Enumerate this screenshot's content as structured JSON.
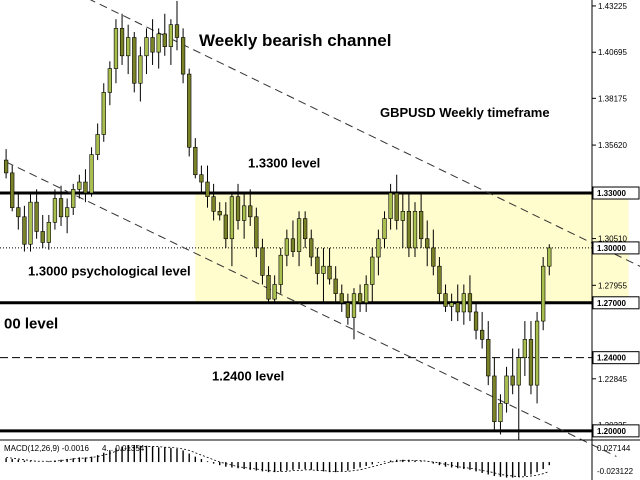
{
  "chart_data": [
    {
      "type": "candlestick",
      "title": "Weekly bearish channel",
      "subtitle": "GBPUSD Weekly timeframe",
      "colors": {
        "bull": "#a8bf50",
        "bear": "#7a8228",
        "highlight": "#fffccd",
        "macd_line": "#000000"
      },
      "y_axis": {
        "ylim": [
          1.195,
          1.4355
        ],
        "ticks": [
          "1.43225",
          "1.40695",
          "1.38175",
          "1.35620",
          "1.30510",
          "1.27955",
          "1.22845",
          "1.20325"
        ]
      },
      "price_tags": [
        "1.33000",
        "1.30000",
        "1.27000",
        "1.24000",
        "1.20000"
      ],
      "levels": [
        {
          "value": 1.33,
          "style": "solid",
          "label": "1.3300 level"
        },
        {
          "value": 1.3,
          "style": "dotted",
          "label": "1.3000 psychological level"
        },
        {
          "value": 1.27,
          "style": "solid",
          "label": "00 level"
        },
        {
          "value": 1.24,
          "style": "dashed",
          "label": "1.2400 level"
        },
        {
          "value": 1.2,
          "style": "solid",
          "label": ""
        }
      ],
      "highlight_zone": {
        "y_range": [
          1.27,
          1.33
        ],
        "x_range": [
          31,
          102
        ]
      },
      "channel": [
        {
          "x0": 0,
          "y0": 1.458,
          "x1": 110,
          "y1": 1.28
        },
        {
          "x0": 0,
          "y0": 1.347,
          "x1": 100,
          "y1": 1.186
        }
      ],
      "candles": [
        [
          1.348,
          1.354,
          1.338,
          1.341
        ],
        [
          1.341,
          1.345,
          1.32,
          1.322
        ],
        [
          1.322,
          1.33,
          1.31,
          1.317
        ],
        [
          1.317,
          1.323,
          1.298,
          1.302
        ],
        [
          1.302,
          1.33,
          1.298,
          1.325
        ],
        [
          1.325,
          1.332,
          1.305,
          1.309
        ],
        [
          1.309,
          1.318,
          1.3,
          1.303
        ],
        [
          1.303,
          1.318,
          1.299,
          1.314
        ],
        [
          1.314,
          1.332,
          1.31,
          1.327
        ],
        [
          1.327,
          1.334,
          1.312,
          1.317
        ],
        [
          1.317,
          1.327,
          1.308,
          1.322
        ],
        [
          1.322,
          1.335,
          1.318,
          1.332
        ],
        [
          1.332,
          1.34,
          1.327,
          1.336
        ],
        [
          1.336,
          1.343,
          1.325,
          1.33
        ],
        [
          1.33,
          1.355,
          1.328,
          1.351
        ],
        [
          1.351,
          1.368,
          1.348,
          1.362
        ],
        [
          1.362,
          1.39,
          1.358,
          1.385
        ],
        [
          1.385,
          1.402,
          1.378,
          1.398
        ],
        [
          1.398,
          1.425,
          1.39,
          1.42
        ],
        [
          1.42,
          1.428,
          1.4,
          1.405
        ],
        [
          1.405,
          1.422,
          1.395,
          1.415
        ],
        [
          1.415,
          1.418,
          1.385,
          1.39
        ],
        [
          1.39,
          1.41,
          1.38,
          1.405
        ],
        [
          1.405,
          1.42,
          1.395,
          1.415
        ],
        [
          1.415,
          1.425,
          1.4,
          1.407
        ],
        [
          1.407,
          1.42,
          1.398,
          1.417
        ],
        [
          1.417,
          1.428,
          1.405,
          1.41
        ],
        [
          1.41,
          1.425,
          1.4,
          1.422
        ],
        [
          1.422,
          1.435,
          1.408,
          1.415
        ],
        [
          1.415,
          1.42,
          1.39,
          1.395
        ],
        [
          1.395,
          1.398,
          1.35,
          1.355
        ],
        [
          1.355,
          1.36,
          1.338,
          1.34
        ],
        [
          1.34,
          1.345,
          1.33,
          1.336
        ],
        [
          1.336,
          1.345,
          1.322,
          1.328
        ],
        [
          1.328,
          1.335,
          1.315,
          1.32
        ],
        [
          1.32,
          1.325,
          1.315,
          1.318
        ],
        [
          1.318,
          1.325,
          1.3,
          1.305
        ],
        [
          1.305,
          1.33,
          1.29,
          1.328
        ],
        [
          1.328,
          1.335,
          1.31,
          1.315
        ],
        [
          1.315,
          1.33,
          1.305,
          1.323
        ],
        [
          1.323,
          1.332,
          1.312,
          1.317
        ],
        [
          1.317,
          1.322,
          1.295,
          1.3
        ],
        [
          1.3,
          1.305,
          1.28,
          1.285
        ],
        [
          1.285,
          1.29,
          1.27,
          1.272
        ],
        [
          1.272,
          1.285,
          1.27,
          1.28
        ],
        [
          1.28,
          1.3,
          1.275,
          1.296
        ],
        [
          1.296,
          1.31,
          1.29,
          1.305
        ],
        [
          1.305,
          1.315,
          1.295,
          1.298
        ],
        [
          1.298,
          1.32,
          1.29,
          1.316
        ],
        [
          1.316,
          1.32,
          1.3,
          1.305
        ],
        [
          1.305,
          1.31,
          1.29,
          1.295
        ],
        [
          1.295,
          1.3,
          1.28,
          1.286
        ],
        [
          1.286,
          1.3,
          1.27,
          1.29
        ],
        [
          1.29,
          1.3,
          1.28,
          1.283
        ],
        [
          1.283,
          1.29,
          1.27,
          1.275
        ],
        [
          1.275,
          1.28,
          1.265,
          1.27
        ],
        [
          1.27,
          1.275,
          1.258,
          1.262
        ],
        [
          1.262,
          1.278,
          1.25,
          1.275
        ],
        [
          1.275,
          1.28,
          1.265,
          1.27
        ],
        [
          1.27,
          1.285,
          1.265,
          1.28
        ],
        [
          1.28,
          1.3,
          1.27,
          1.295
        ],
        [
          1.295,
          1.31,
          1.285,
          1.305
        ],
        [
          1.305,
          1.32,
          1.3,
          1.316
        ],
        [
          1.316,
          1.335,
          1.31,
          1.33
        ],
        [
          1.33,
          1.34,
          1.31,
          1.315
        ],
        [
          1.315,
          1.33,
          1.3,
          1.32
        ],
        [
          1.32,
          1.33,
          1.295,
          1.3
        ],
        [
          1.3,
          1.325,
          1.295,
          1.32
        ],
        [
          1.32,
          1.33,
          1.3,
          1.305
        ],
        [
          1.305,
          1.315,
          1.29,
          1.3
        ],
        [
          1.3,
          1.31,
          1.285,
          1.29
        ],
        [
          1.29,
          1.295,
          1.27,
          1.275
        ],
        [
          1.275,
          1.28,
          1.265,
          1.268
        ],
        [
          1.268,
          1.275,
          1.26,
          1.27
        ],
        [
          1.27,
          1.28,
          1.26,
          1.265
        ],
        [
          1.265,
          1.28,
          1.258,
          1.275
        ],
        [
          1.275,
          1.285,
          1.26,
          1.265
        ],
        [
          1.265,
          1.27,
          1.25,
          1.255
        ],
        [
          1.255,
          1.265,
          1.245,
          1.25
        ],
        [
          1.25,
          1.26,
          1.225,
          1.23
        ],
        [
          1.23,
          1.24,
          1.2,
          1.205
        ],
        [
          1.205,
          1.22,
          1.198,
          1.215
        ],
        [
          1.215,
          1.235,
          1.21,
          1.23
        ],
        [
          1.23,
          1.245,
          1.22,
          1.225
        ],
        [
          1.225,
          1.245,
          1.195,
          1.24
        ],
        [
          1.24,
          1.26,
          1.23,
          1.25
        ],
        [
          1.25,
          1.26,
          1.22,
          1.225
        ],
        [
          1.225,
          1.265,
          1.215,
          1.26
        ],
        [
          1.26,
          1.295,
          1.255,
          1.29
        ],
        [
          1.29,
          1.302,
          1.285,
          1.3
        ]
      ],
      "candle_x": [
        0,
        1,
        2,
        3,
        4,
        5,
        6,
        7,
        8,
        9,
        10,
        11,
        12,
        13,
        14,
        15,
        16,
        17,
        18,
        19,
        20,
        21,
        22,
        23,
        24,
        25,
        26,
        27,
        28,
        29,
        30,
        31,
        32,
        33,
        34,
        35,
        36,
        37,
        38,
        39,
        40,
        41,
        42,
        43,
        44,
        45,
        46,
        47,
        48,
        49,
        50,
        51,
        52,
        53,
        54,
        55,
        56,
        57,
        58,
        59,
        60,
        61,
        62,
        63,
        64,
        65,
        66,
        67,
        68,
        69,
        70,
        71,
        72,
        73,
        74,
        75,
        76,
        77,
        78,
        79,
        80,
        81,
        82,
        83,
        84,
        85,
        86,
        87,
        88,
        89
      ],
      "x_domain": [
        -1,
        96
      ]
    },
    {
      "type": "bar",
      "title": "MACD(12,26,9) -0.0016",
      "subtitle": "4... 0.01354",
      "y_axis": {
        "ticks": [
          "0.027144",
          "-0.023122"
        ],
        "ylim": [
          -0.023122,
          0.027144
        ]
      },
      "macd_x_domain": [
        -1,
        96
      ],
      "macd_start": 0,
      "values": [
        0.005,
        0.004,
        0.003,
        0.002,
        0.001,
        0.0,
        0.0,
        0.001,
        0.002,
        0.003,
        0.004,
        0.005,
        0.006,
        0.006,
        0.007,
        0.009,
        0.012,
        0.015,
        0.018,
        0.02,
        0.022,
        0.022,
        0.021,
        0.021,
        0.02,
        0.019,
        0.019,
        0.018,
        0.017,
        0.015,
        0.011,
        0.007,
        0.004,
        0.001,
        -0.002,
        -0.004,
        -0.006,
        -0.007,
        -0.008,
        -0.009,
        -0.01,
        -0.011,
        -0.012,
        -0.013,
        -0.013,
        -0.012,
        -0.011,
        -0.01,
        -0.009,
        -0.009,
        -0.01,
        -0.011,
        -0.012,
        -0.013,
        -0.013,
        -0.012,
        -0.011,
        -0.009,
        -0.007,
        -0.005,
        -0.003,
        -0.001,
        0.001,
        0.002,
        0.003,
        0.003,
        0.003,
        0.002,
        0.001,
        0.0,
        -0.002,
        -0.004,
        -0.006,
        -0.007,
        -0.008,
        -0.009,
        -0.01,
        -0.012,
        -0.014,
        -0.016,
        -0.018,
        -0.019,
        -0.02,
        -0.02,
        -0.019,
        -0.018,
        -0.016,
        -0.013,
        -0.009,
        -0.004
      ],
      "signal": [
        0.006,
        0.005,
        0.004,
        0.003,
        0.002,
        0.001,
        0.001,
        0.001,
        0.001,
        0.002,
        0.003,
        0.004,
        0.005,
        0.005,
        0.006,
        0.007,
        0.009,
        0.011,
        0.014,
        0.016,
        0.018,
        0.019,
        0.02,
        0.02,
        0.02,
        0.02,
        0.019,
        0.019,
        0.018,
        0.017,
        0.015,
        0.012,
        0.009,
        0.006,
        0.003,
        0.0,
        -0.002,
        -0.004,
        -0.006,
        -0.007,
        -0.008,
        -0.009,
        -0.01,
        -0.011,
        -0.012,
        -0.012,
        -0.012,
        -0.011,
        -0.011,
        -0.01,
        -0.01,
        -0.011,
        -0.011,
        -0.012,
        -0.012,
        -0.012,
        -0.012,
        -0.011,
        -0.01,
        -0.008,
        -0.006,
        -0.004,
        -0.002,
        0.0,
        0.001,
        0.002,
        0.002,
        0.002,
        0.002,
        0.001,
        0.0,
        -0.001,
        -0.003,
        -0.004,
        -0.006,
        -0.007,
        -0.008,
        -0.009,
        -0.011,
        -0.012,
        -0.014,
        -0.016,
        -0.017,
        -0.018,
        -0.019,
        -0.019,
        -0.018,
        -0.017,
        -0.015,
        -0.012
      ]
    }
  ]
}
